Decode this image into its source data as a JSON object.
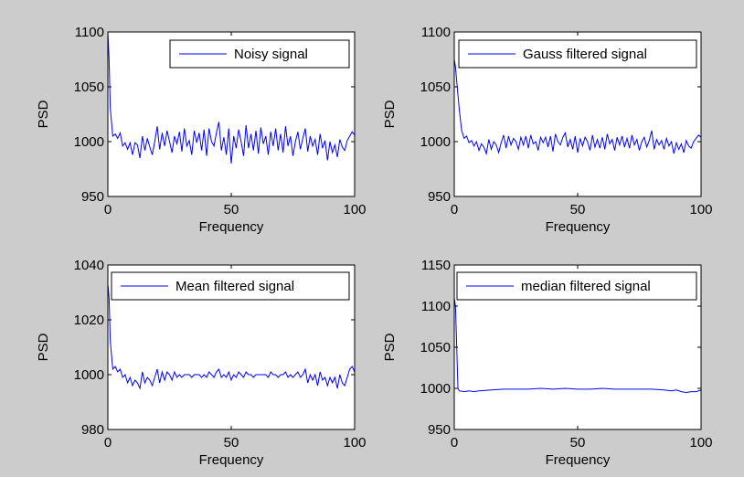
{
  "colors": {
    "figure_bg": "#cccccc",
    "axes_bg": "#ffffff",
    "line": "#0000ff",
    "frame": "#000000"
  },
  "chart_data": [
    {
      "type": "line",
      "xlabel": "Frequency",
      "ylabel": "PSD",
      "xlim": [
        0,
        100
      ],
      "ylim": [
        950,
        1100
      ],
      "xticks": [
        0,
        50,
        100
      ],
      "yticks": [
        950,
        1000,
        1050,
        1100
      ],
      "legend": "top-right",
      "series": [
        {
          "name": "Noisy signal",
          "x": [
            0,
            0.5,
            1,
            2,
            3,
            4,
            5,
            6,
            7,
            8,
            9,
            10,
            11,
            12,
            13,
            14,
            15,
            16,
            17,
            18,
            19,
            20,
            21,
            22,
            23,
            24,
            25,
            26,
            27,
            28,
            29,
            30,
            31,
            32,
            33,
            34,
            35,
            36,
            37,
            38,
            39,
            40,
            41,
            42,
            43,
            44,
            45,
            46,
            47,
            48,
            49,
            50,
            51,
            52,
            53,
            54,
            55,
            56,
            57,
            58,
            59,
            60,
            61,
            62,
            63,
            64,
            65,
            66,
            67,
            68,
            69,
            70,
            71,
            72,
            73,
            74,
            75,
            76,
            77,
            78,
            79,
            80,
            81,
            82,
            83,
            84,
            85,
            86,
            87,
            88,
            89,
            90,
            91,
            92,
            93,
            94,
            95,
            96,
            97,
            98,
            99,
            100
          ],
          "values": [
            1100,
            1075,
            1030,
            1005,
            1007,
            1003,
            1008,
            996,
            999,
            993,
            999,
            988,
            999,
            997,
            985,
            1005,
            992,
            1003,
            995,
            988,
            1000,
            1014,
            993,
            1008,
            996,
            1010,
            1000,
            990,
            1005,
            998,
            1009,
            991,
            1012,
            996,
            1001,
            988,
            1010,
            999,
            1008,
            992,
            1011,
            987,
            1012,
            1000,
            996,
            1008,
            1018,
            992,
            1004,
            988,
            1012,
            980,
            1005,
            994,
            1011,
            1000,
            987,
            1015,
            994,
            1007,
            992,
            1010,
            989,
            1013,
            998,
            1005,
            988,
            1009,
            996,
            1012,
            992,
            1007,
            990,
            1014,
            996,
            1005,
            987,
            1000,
            1009,
            993,
            1003,
            1012,
            991,
            1005,
            996,
            1002,
            988,
            1007,
            994,
            1001,
            983,
            1000,
            990,
            997,
            986,
            1002,
            995,
            992,
            1001,
            1005,
            1009,
            1006
          ]
        }
      ]
    },
    {
      "type": "line",
      "xlabel": "Frequency",
      "ylabel": "PSD",
      "xlim": [
        0,
        100
      ],
      "ylim": [
        950,
        1100
      ],
      "xticks": [
        0,
        50,
        100
      ],
      "yticks": [
        950,
        1000,
        1050,
        1100
      ],
      "legend": "top-right",
      "series": [
        {
          "name": "Gauss filtered signal",
          "x": [
            0,
            0.5,
            1,
            2,
            3,
            4,
            5,
            6,
            7,
            8,
            9,
            10,
            11,
            12,
            13,
            14,
            15,
            16,
            17,
            18,
            19,
            20,
            21,
            22,
            23,
            24,
            25,
            26,
            27,
            28,
            29,
            30,
            31,
            32,
            33,
            34,
            35,
            36,
            37,
            38,
            39,
            40,
            41,
            42,
            43,
            44,
            45,
            46,
            47,
            48,
            49,
            50,
            51,
            52,
            53,
            54,
            55,
            56,
            57,
            58,
            59,
            60,
            61,
            62,
            63,
            64,
            65,
            66,
            67,
            68,
            69,
            70,
            71,
            72,
            73,
            74,
            75,
            76,
            77,
            78,
            79,
            80,
            81,
            82,
            83,
            84,
            85,
            86,
            87,
            88,
            89,
            90,
            91,
            92,
            93,
            94,
            95,
            96,
            97,
            98,
            99,
            100
          ],
          "values": [
            1075,
            1068,
            1055,
            1030,
            1010,
            1003,
            1005,
            999,
            1001,
            996,
            1000,
            992,
            998,
            995,
            989,
            1002,
            993,
            1000,
            997,
            990,
            999,
            1006,
            994,
            1005,
            997,
            1003,
            1000,
            993,
            1004,
            997,
            1005,
            994,
            1006,
            998,
            1000,
            992,
            1004,
            999,
            1004,
            995,
            1005,
            991,
            1007,
            1000,
            997,
            1004,
            1008,
            995,
            1002,
            993,
            1005,
            990,
            1003,
            996,
            1004,
            1000,
            992,
            1006,
            995,
            1002,
            994,
            1004,
            993,
            1007,
            998,
            1002,
            992,
            1004,
            997,
            1005,
            995,
            1003,
            994,
            1006,
            997,
            1002,
            992,
            1000,
            1004,
            995,
            1001,
            1010,
            993,
            1002,
            997,
            1001,
            993,
            1003,
            996,
            1000,
            989,
            999,
            993,
            998,
            990,
            1001,
            996,
            994,
            1000,
            1003,
            1006,
            1004
          ]
        }
      ]
    },
    {
      "type": "line",
      "xlabel": "Frequency",
      "ylabel": "PSD",
      "xlim": [
        0,
        100
      ],
      "ylim": [
        980,
        1040
      ],
      "xticks": [
        0,
        50,
        100
      ],
      "yticks": [
        980,
        1000,
        1020,
        1040
      ],
      "legend": "top-right",
      "series": [
        {
          "name": "Mean filtered signal",
          "x": [
            0,
            0.5,
            1,
            2,
            3,
            4,
            5,
            6,
            7,
            8,
            9,
            10,
            11,
            12,
            13,
            14,
            15,
            16,
            17,
            18,
            19,
            20,
            21,
            22,
            23,
            24,
            25,
            26,
            27,
            28,
            29,
            30,
            31,
            32,
            33,
            34,
            35,
            36,
            37,
            38,
            39,
            40,
            41,
            42,
            43,
            44,
            45,
            46,
            47,
            48,
            49,
            50,
            51,
            52,
            53,
            54,
            55,
            56,
            57,
            58,
            59,
            60,
            61,
            62,
            63,
            64,
            65,
            66,
            67,
            68,
            69,
            70,
            71,
            72,
            73,
            74,
            75,
            76,
            77,
            78,
            79,
            80,
            81,
            82,
            83,
            84,
            85,
            86,
            87,
            88,
            89,
            90,
            91,
            92,
            93,
            94,
            95,
            96,
            97,
            98,
            99,
            100
          ],
          "values": [
            1033,
            1028,
            1012,
            1002,
            1003,
            1001,
            1002,
            999,
            1000,
            997,
            999,
            996,
            998,
            997,
            995,
            1001,
            997,
            999,
            998,
            996,
            999,
            1002,
            997,
            1001,
            998,
            1001,
            1000,
            998,
            1001,
            999,
            1000,
            999,
            1000,
            1000,
            1000,
            999,
            1000,
            1000,
            1000,
            999,
            1000,
            999,
            1001,
            1000,
            999,
            1001,
            1002,
            999,
            1000,
            999,
            1001,
            998,
            1000,
            999,
            1001,
            1000,
            999,
            1001,
            1000,
            1000,
            999,
            1000,
            1000,
            1000,
            1000,
            1000,
            999,
            1001,
            1000,
            1000,
            999,
            1000,
            1000,
            1001,
            999,
            1000,
            999,
            1000,
            1001,
            999,
            1000,
            1002,
            997,
            1000,
            998,
            1000,
            996,
            1001,
            998,
            999,
            996,
            999,
            997,
            999,
            995,
            1000,
            997,
            996,
            999,
            1002,
            1003,
            1001
          ]
        }
      ]
    },
    {
      "type": "line",
      "xlabel": "Frequency",
      "ylabel": "PSD",
      "xlim": [
        0,
        100
      ],
      "ylim": [
        950,
        1150
      ],
      "xticks": [
        0,
        50,
        100
      ],
      "yticks": [
        950,
        1000,
        1050,
        1100,
        1150
      ],
      "legend": "top-right",
      "series": [
        {
          "name": "median filtered signal",
          "x": [
            0,
            0.5,
            1,
            1.5,
            2,
            4,
            6,
            8,
            10,
            15,
            20,
            25,
            30,
            35,
            40,
            45,
            50,
            55,
            60,
            65,
            70,
            75,
            80,
            85,
            88,
            90,
            92,
            94,
            96,
            98,
            100
          ],
          "values": [
            1110,
            1100,
            1050,
            1000,
            997,
            996,
            997,
            996,
            997,
            998,
            999,
            999,
            999,
            1000,
            999,
            1000,
            999,
            999,
            1000,
            999,
            999,
            999,
            999,
            998,
            997,
            998,
            996,
            995,
            996,
            996,
            998
          ]
        }
      ]
    }
  ]
}
